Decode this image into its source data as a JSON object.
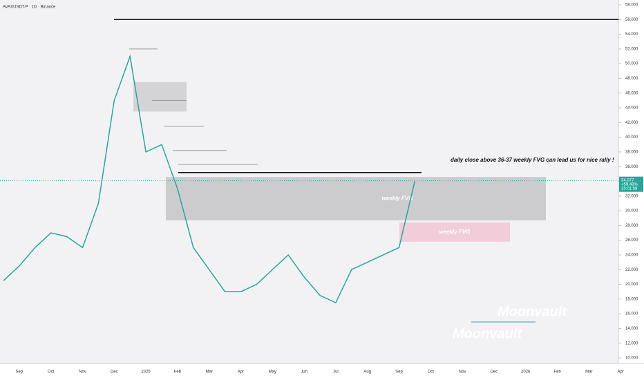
{
  "chart_data": {
    "type": "line",
    "title": "AVAXUSDT.P · 1D · Binance",
    "categories": [
      null,
      "Sep",
      null,
      "Oct",
      null,
      "Nov",
      null,
      "Dec",
      null,
      "2025",
      null,
      "Feb",
      null,
      "Mar",
      null,
      "Apr",
      null,
      "May",
      null,
      "Jun",
      null,
      "Jul",
      null,
      "Aug",
      null,
      "Sep",
      null,
      "Oct",
      null,
      "Nov",
      null,
      "Dec",
      null,
      "2026",
      null,
      "Feb",
      null,
      "Mar",
      null,
      "Apr"
    ],
    "series": [
      {
        "name": "AVAXUSDT.P",
        "color": "#26a69a",
        "values": [
          20.5,
          22.5,
          25,
          27,
          26.5,
          25,
          31,
          45,
          51,
          38,
          39,
          33,
          25,
          22,
          19,
          19,
          20,
          22,
          24,
          21,
          18.5,
          17.5,
          22,
          23,
          24,
          25,
          34.08,
          null,
          null,
          null,
          null,
          null,
          null,
          null,
          null,
          null,
          null,
          null,
          null,
          null
        ]
      }
    ],
    "ylim": [
      10,
      58
    ],
    "yticks": [
      {
        "value": 10,
        "label": "10.000"
      },
      {
        "value": 12,
        "label": "12.000"
      },
      {
        "value": 14,
        "label": "14.000"
      },
      {
        "value": 16,
        "label": "16.000"
      },
      {
        "value": 18,
        "label": "18.000"
      },
      {
        "value": 20,
        "label": "20.000"
      },
      {
        "value": 22,
        "label": "22.000"
      },
      {
        "value": 24,
        "label": "24.000"
      },
      {
        "value": 26,
        "label": "26.000"
      },
      {
        "value": 28,
        "label": "28.000"
      },
      {
        "value": 30,
        "label": "30.000"
      },
      {
        "value": 32,
        "label": "32.000"
      },
      {
        "value": 34,
        "label": "34.000"
      },
      {
        "value": 36,
        "label": "36.000"
      },
      {
        "value": 38,
        "label": "38.000"
      },
      {
        "value": 40,
        "label": "40.000"
      },
      {
        "value": 42,
        "label": "42.000"
      },
      {
        "value": 44,
        "label": "44.000"
      },
      {
        "value": 46,
        "label": "46.000"
      },
      {
        "value": 48,
        "label": "48.000"
      },
      {
        "value": 50,
        "label": "50.000"
      },
      {
        "value": 52,
        "label": "52.000"
      },
      {
        "value": 54,
        "label": "54.000"
      },
      {
        "value": 56,
        "label": "56.000"
      },
      {
        "value": 58,
        "label": "58.000"
      }
    ],
    "last_price": {
      "value": 34.077,
      "label": "34.077"
    },
    "change_label": "+59.48%",
    "countdown": "15:01:58",
    "levels": [
      56,
      35.2,
      52,
      45,
      41.5,
      38.2,
      36.3
    ],
    "zones": [
      {
        "name": "weekly FVG",
        "low": 28.7,
        "high": 34.6
      },
      {
        "name": "weekly FVG",
        "low": 25.8,
        "high": 28.4
      },
      {
        "low": 43.5,
        "high": 47.5
      }
    ],
    "annotation": "daily close above 36-37 weekly FVG can lead us for nice rally !",
    "watermark": "Moonvault"
  }
}
